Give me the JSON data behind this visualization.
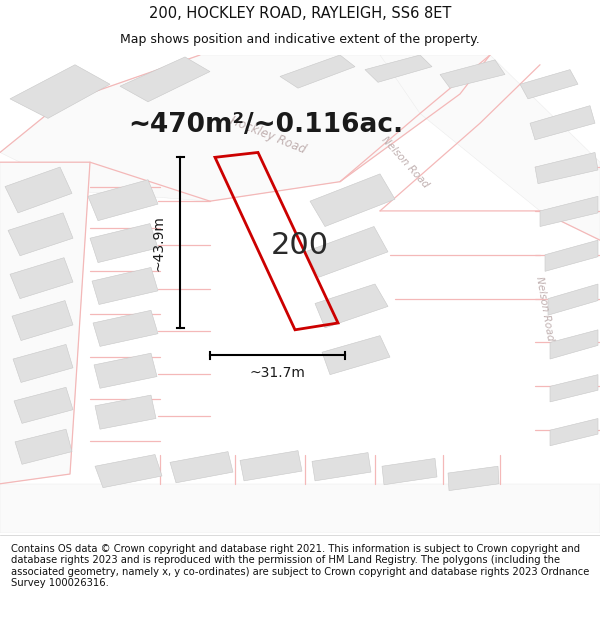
{
  "title": "200, HOCKLEY ROAD, RAYLEIGH, SS6 8ET",
  "subtitle": "Map shows position and indicative extent of the property.",
  "area_text": "~470m²/~0.116ac.",
  "number_label": "200",
  "dim_width": "~31.7m",
  "dim_height": "~43.9m",
  "footer": "Contains OS data © Crown copyright and database right 2021. This information is subject to Crown copyright and database rights 2023 and is reproduced with the permission of HM Land Registry. The polygons (including the associated geometry, namely x, y co-ordinates) are subject to Crown copyright and database rights 2023 Ordnance Survey 100026316.",
  "map_bg": "#f2f2f2",
  "building_fill": "#e0e0e0",
  "road_line_color": "#f4b8b8",
  "road_label_color": "#c0b0b0",
  "highlight_color": "#cc0000",
  "title_fontsize": 10.5,
  "subtitle_fontsize": 9,
  "area_fontsize": 19,
  "number_fontsize": 22,
  "dim_fontsize": 10,
  "footer_fontsize": 7.2
}
